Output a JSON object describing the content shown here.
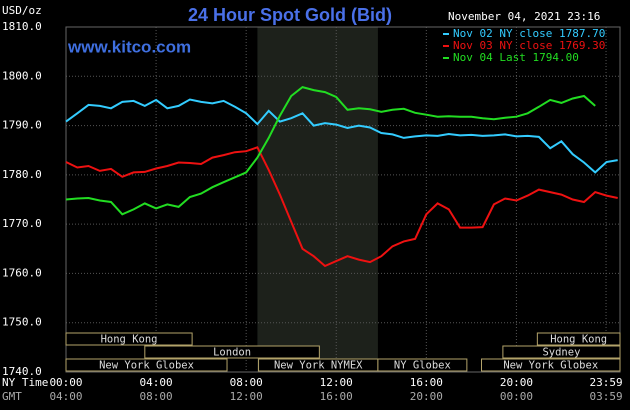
{
  "chart_data": {
    "type": "line",
    "title": "24 Hour Spot Gold (Bid)",
    "unit_label": "USD/oz",
    "website": "www.kitco.com",
    "timestamp": "November 04, 2021 23:16",
    "x_row_labels": [
      "NY Time",
      "GMT"
    ],
    "x": [
      0,
      0.5,
      1,
      1.5,
      2,
      2.5,
      3,
      3.5,
      4,
      4.5,
      5,
      5.5,
      6,
      6.5,
      7,
      7.5,
      8,
      8.5,
      9,
      9.5,
      10,
      10.5,
      11,
      11.5,
      12,
      12.5,
      13,
      13.5,
      14,
      14.5,
      15,
      15.5,
      16,
      16.5,
      17,
      17.5,
      18,
      18.5,
      19,
      19.5,
      20,
      20.5,
      21,
      21.5,
      22,
      22.5,
      23,
      23.5,
      24,
      24.5
    ],
    "series": [
      {
        "name": "Nov 02 NY close 1787.70",
        "color": "#33ccff",
        "values": [
          1790.8,
          1792.5,
          1794.2,
          1794,
          1793.5,
          1794.8,
          1795,
          1794,
          1795.2,
          1793.5,
          1794,
          1795.3,
          1794.8,
          1794.5,
          1795,
          1793.8,
          1792.5,
          1790.3,
          1793,
          1790.8,
          1791.5,
          1792.5,
          1790,
          1790.5,
          1790.2,
          1789.5,
          1790,
          1789.6,
          1788.5,
          1788.2,
          1787.5,
          1787.8,
          1788,
          1787.9,
          1788.3,
          1788,
          1788.1,
          1787.9,
          1788,
          1788.2,
          1787.8,
          1787.9,
          1787.7,
          1785.4,
          1786.8,
          1784.2,
          1782.5,
          1780.5,
          1782.6,
          1783
        ]
      },
      {
        "name": "Nov 03 NY close 1769.30",
        "color": "#ee1111",
        "values": [
          1782.6,
          1781.5,
          1781.8,
          1780.8,
          1781.2,
          1779.6,
          1780.5,
          1780.6,
          1781.3,
          1781.8,
          1782.5,
          1782.4,
          1782.2,
          1783.5,
          1784,
          1784.6,
          1784.8,
          1785.6,
          1781,
          1776,
          1770.5,
          1765,
          1763.5,
          1761.5,
          1762.5,
          1763.5,
          1762.8,
          1762.3,
          1763.5,
          1765.5,
          1766.5,
          1767,
          1772,
          1774.2,
          1773,
          1769.3,
          1769.3,
          1769.4,
          1774,
          1775.2,
          1774.8,
          1775.8,
          1777,
          1776.5,
          1776,
          1775,
          1774.5,
          1776.5,
          1775.8,
          1775.3
        ]
      },
      {
        "name": "Nov 04 Last 1794.00",
        "color": "#22dd22",
        "values": [
          1775,
          1775.2,
          1775.3,
          1774.8,
          1774.5,
          1772,
          1773,
          1774.2,
          1773.2,
          1774,
          1773.5,
          1775.5,
          1776.2,
          1777.5,
          1778.5,
          1779.5,
          1780.5,
          1783.5,
          1787.5,
          1792,
          1796,
          1797.8,
          1797.2,
          1796.8,
          1795.8,
          1793.2,
          1793.5,
          1793.3,
          1792.8,
          1793.2,
          1793.4,
          1792.6,
          1792.2,
          1791.8,
          1791.9,
          1791.8,
          1791.8,
          1791.5,
          1791.3,
          1791.6,
          1791.8,
          1792.5,
          1793.8,
          1795.2,
          1794.6,
          1795.5,
          1796,
          1794,
          null,
          null
        ]
      }
    ],
    "xlim": [
      0,
      24.6
    ],
    "ylim": [
      1740,
      1810
    ],
    "yticks": [
      {
        "value": 1740,
        "label": "1740.0"
      },
      {
        "value": 1750,
        "label": "1750.0"
      },
      {
        "value": 1760,
        "label": "1760.0"
      },
      {
        "value": 1770,
        "label": "1770.0"
      },
      {
        "value": 1780,
        "label": "1780.0"
      },
      {
        "value": 1790,
        "label": "1790.0"
      },
      {
        "value": 1800,
        "label": "1800.0"
      },
      {
        "value": 1810,
        "label": "1810.0"
      }
    ],
    "xticks": [
      {
        "value": 0,
        "label": "00:00"
      },
      {
        "value": 4,
        "label": "04:00"
      },
      {
        "value": 8,
        "label": "08:00"
      },
      {
        "value": 12,
        "label": "12:00"
      },
      {
        "value": 16,
        "label": "16:00"
      },
      {
        "value": 20,
        "label": "20:00"
      },
      {
        "value": 23.98,
        "label": "23:59"
      }
    ],
    "gmt_labels": [
      "04:00",
      "08:00",
      "12:00",
      "16:00",
      "20:00",
      "00:00",
      "03:59"
    ],
    "grid": true,
    "highlight": [
      8.5,
      13.85
    ],
    "sessions": [
      {
        "name": "Hong Kong",
        "start": 0,
        "end": 5.6,
        "row": 0
      },
      {
        "name": "Hong Kong",
        "start": 20.93,
        "end": 24.6,
        "row": 0
      },
      {
        "name": "London",
        "start": 3.5,
        "end": 11.25,
        "row": 1
      },
      {
        "name": "Sydney",
        "start": 19.4,
        "end": 24.6,
        "row": 1
      },
      {
        "name": "New York Globex",
        "start": 0,
        "end": 7.15,
        "row": 2
      },
      {
        "name": "New York NYMEX",
        "start": 8.55,
        "end": 13.85,
        "row": 2
      },
      {
        "name": "NY Globex",
        "start": 13.85,
        "end": 17.8,
        "row": 2
      },
      {
        "name": "New York Globex",
        "start": 18.45,
        "end": 24.6,
        "row": 2
      }
    ]
  }
}
